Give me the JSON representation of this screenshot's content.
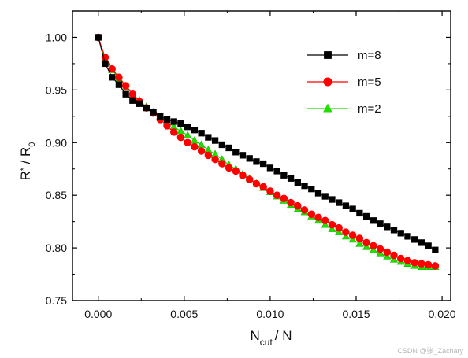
{
  "chart_data": {
    "type": "line",
    "xlabel": {
      "main": "N",
      "sub": "cut",
      "rest": "/ N"
    },
    "ylabel": {
      "main": "R",
      "sup": "*",
      "mid": " / R",
      "sub": "0"
    },
    "xlim": [
      -0.0015,
      0.0205
    ],
    "ylim": [
      0.75,
      1.025
    ],
    "xticks": [
      0.0,
      0.005,
      0.01,
      0.015,
      0.02
    ],
    "xtick_labels": [
      "0.000",
      "0.005",
      "0.010",
      "0.015",
      "0.020"
    ],
    "yticks": [
      0.75,
      0.8,
      0.85,
      0.9,
      0.95,
      1.0
    ],
    "ytick_labels": [
      "0.75",
      "0.80",
      "0.85",
      "0.90",
      "0.95",
      "1.00"
    ],
    "grid": false,
    "legend_position": "top-right",
    "x": [
      0.0,
      0.0004,
      0.0008,
      0.0012,
      0.0016,
      0.002,
      0.0024,
      0.0028,
      0.0032,
      0.0036,
      0.004,
      0.0044,
      0.0048,
      0.0052,
      0.0056,
      0.006,
      0.0064,
      0.0068,
      0.0072,
      0.0076,
      0.008,
      0.0084,
      0.0088,
      0.0092,
      0.0096,
      0.01,
      0.0104,
      0.0108,
      0.0112,
      0.0116,
      0.012,
      0.0124,
      0.0128,
      0.0132,
      0.0136,
      0.014,
      0.0144,
      0.0148,
      0.0152,
      0.0156,
      0.016,
      0.0164,
      0.0168,
      0.0172,
      0.0176,
      0.018,
      0.0184,
      0.0188,
      0.0192,
      0.0196
    ],
    "series": [
      {
        "name": "m=8",
        "marker": "square",
        "color": "#000000",
        "values": [
          1.0,
          0.975,
          0.962,
          0.955,
          0.946,
          0.94,
          0.937,
          0.933,
          0.929,
          0.925,
          0.922,
          0.92,
          0.918,
          0.915,
          0.912,
          0.909,
          0.905,
          0.902,
          0.898,
          0.895,
          0.891,
          0.888,
          0.885,
          0.882,
          0.88,
          0.876,
          0.873,
          0.869,
          0.866,
          0.862,
          0.859,
          0.856,
          0.852,
          0.849,
          0.846,
          0.843,
          0.84,
          0.837,
          0.833,
          0.83,
          0.826,
          0.823,
          0.82,
          0.817,
          0.814,
          0.811,
          0.808,
          0.805,
          0.802,
          0.798
        ]
      },
      {
        "name": "m=5",
        "marker": "circle",
        "color": "#ff0000",
        "values": [
          1.0,
          0.981,
          0.97,
          0.962,
          0.954,
          0.946,
          0.939,
          0.933,
          0.928,
          0.922,
          0.916,
          0.91,
          0.905,
          0.9,
          0.896,
          0.892,
          0.888,
          0.884,
          0.88,
          0.876,
          0.873,
          0.869,
          0.865,
          0.861,
          0.858,
          0.854,
          0.85,
          0.847,
          0.843,
          0.84,
          0.836,
          0.832,
          0.829,
          0.826,
          0.822,
          0.819,
          0.815,
          0.812,
          0.809,
          0.805,
          0.802,
          0.799,
          0.796,
          0.793,
          0.79,
          0.788,
          0.786,
          0.785,
          0.784,
          0.783
        ]
      },
      {
        "name": "m=2",
        "marker": "triangle",
        "color": "#22dd00",
        "values": [
          1.0,
          0.979,
          0.969,
          0.961,
          0.953,
          0.946,
          0.94,
          0.934,
          0.929,
          0.924,
          0.92,
          0.915,
          0.911,
          0.907,
          0.902,
          0.898,
          0.893,
          0.889,
          0.884,
          0.879,
          0.875,
          0.87,
          0.866,
          0.861,
          0.857,
          0.853,
          0.849,
          0.845,
          0.841,
          0.837,
          0.834,
          0.83,
          0.826,
          0.822,
          0.818,
          0.815,
          0.811,
          0.808,
          0.804,
          0.801,
          0.798,
          0.795,
          0.792,
          0.789,
          0.787,
          0.785,
          0.783,
          0.782,
          0.782,
          0.782
        ]
      }
    ]
  },
  "watermark": "CSDN @张_Zachary"
}
